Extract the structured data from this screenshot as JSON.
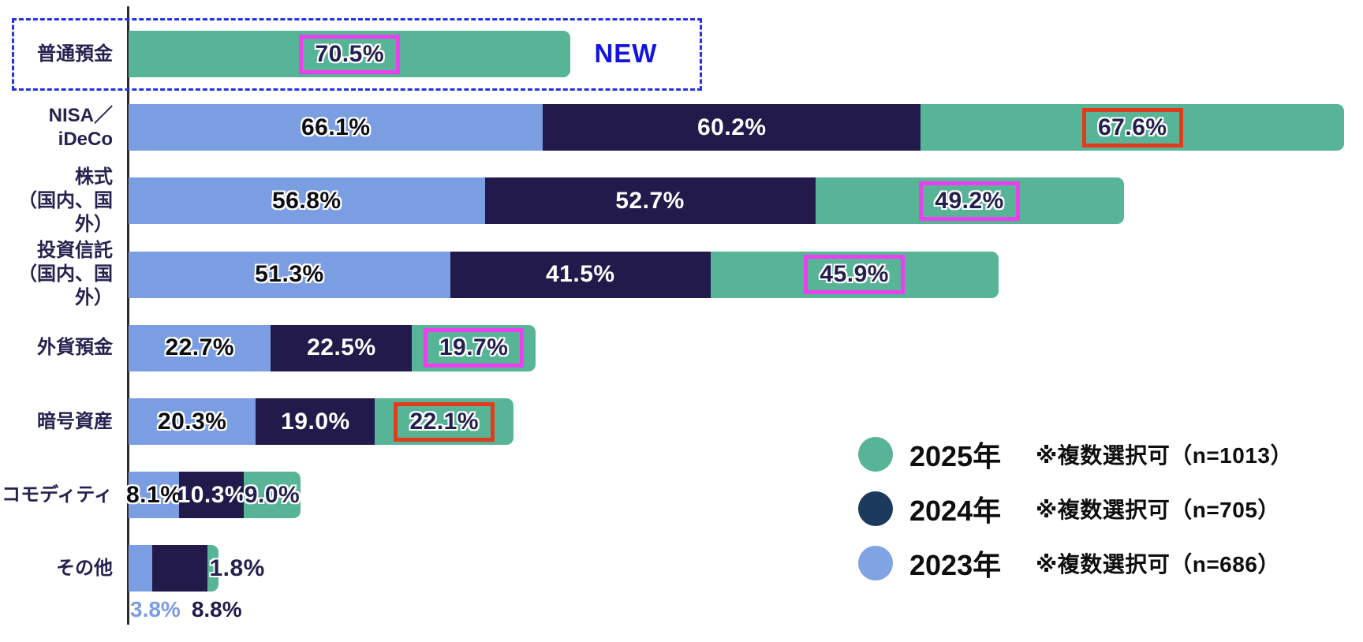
{
  "colors": {
    "green": "#57b496",
    "navy": "#211a4a",
    "blue": "#7b9de2",
    "legend_navy": "#1c3a5e",
    "legend_blue": "#7fa3e3",
    "magenta": "#ec3ff0",
    "red": "#e23a1c",
    "dashed_blue": "#2331e8",
    "new_blue": "#1414e0",
    "pct_on_blue": "#0c0c14",
    "pct_on_navy": "#ffffff",
    "pct_on_green": "#232050",
    "axis": "#2b2b2b"
  },
  "new_badge_text": "NEW",
  "legend": {
    "items": [
      {
        "series": "2025年",
        "label": "2025年",
        "note": "※複数選択可（n=1013）",
        "color": "#57b496"
      },
      {
        "series": "2024年",
        "label": "2024年",
        "note": "※複数選択可（n=705）",
        "color": "#1c3a5e"
      },
      {
        "series": "2023年",
        "label": "2023年",
        "note": "※複数選択可（n=686）",
        "color": "#7fa3e3"
      }
    ]
  },
  "chart_data": {
    "type": "bar",
    "orientation": "horizontal",
    "unit": "%",
    "series_order": [
      "2023年",
      "2024年",
      "2025年"
    ],
    "series_colors": {
      "2023年": "#7b9de2",
      "2024年": "#211a4a",
      "2025年": "#57b496"
    },
    "label_colors": {
      "2023年": "#0c0c14",
      "2024年": "#ffffff",
      "2025年": "#232050"
    },
    "categories": [
      {
        "label": "普通預金",
        "new": true,
        "segments": [
          {
            "series": "2025年",
            "value": 70.5,
            "label": "70.5%",
            "highlight": "magenta"
          }
        ]
      },
      {
        "label": "NISA／iDeCo",
        "segments": [
          {
            "series": "2023年",
            "value": 66.1,
            "label": "66.1%"
          },
          {
            "series": "2024年",
            "value": 60.2,
            "label": "60.2%"
          },
          {
            "series": "2025年",
            "value": 67.6,
            "label": "67.6%",
            "highlight": "red"
          }
        ]
      },
      {
        "label": "株式\n（国内、国外）",
        "segments": [
          {
            "series": "2023年",
            "value": 56.8,
            "label": "56.8%"
          },
          {
            "series": "2024年",
            "value": 52.7,
            "label": "52.7%"
          },
          {
            "series": "2025年",
            "value": 49.2,
            "label": "49.2%",
            "highlight": "magenta"
          }
        ]
      },
      {
        "label": "投資信託\n（国内、国外）",
        "segments": [
          {
            "series": "2023年",
            "value": 51.3,
            "label": "51.3%"
          },
          {
            "series": "2024年",
            "value": 41.5,
            "label": "41.5%"
          },
          {
            "series": "2025年",
            "value": 45.9,
            "label": "45.9%",
            "highlight": "magenta"
          }
        ]
      },
      {
        "label": "外貨預金",
        "segments": [
          {
            "series": "2023年",
            "value": 22.7,
            "label": "22.7%"
          },
          {
            "series": "2024年",
            "value": 22.5,
            "label": "22.5%"
          },
          {
            "series": "2025年",
            "value": 19.7,
            "label": "19.7%",
            "highlight": "magenta"
          }
        ]
      },
      {
        "label": "暗号資産",
        "segments": [
          {
            "series": "2023年",
            "value": 20.3,
            "label": "20.3%"
          },
          {
            "series": "2024年",
            "value": 19.0,
            "label": "19.0%"
          },
          {
            "series": "2025年",
            "value": 22.1,
            "label": "22.1%",
            "highlight": "red"
          }
        ]
      },
      {
        "label": "コモディティ",
        "segments": [
          {
            "series": "2023年",
            "value": 8.1,
            "label": "8.1%"
          },
          {
            "series": "2024年",
            "value": 10.3,
            "label": "10.3%"
          },
          {
            "series": "2025年",
            "value": 9.0,
            "label": "9.0%"
          }
        ]
      },
      {
        "label": "その他",
        "segments": [
          {
            "series": "2023年",
            "value": 3.8,
            "label": "3.8%",
            "placement": "below"
          },
          {
            "series": "2024年",
            "value": 8.8,
            "label": "8.8%",
            "placement": "below"
          },
          {
            "series": "2025年",
            "value": 1.8,
            "label": "1.8%",
            "placement": "outside"
          }
        ]
      }
    ]
  }
}
